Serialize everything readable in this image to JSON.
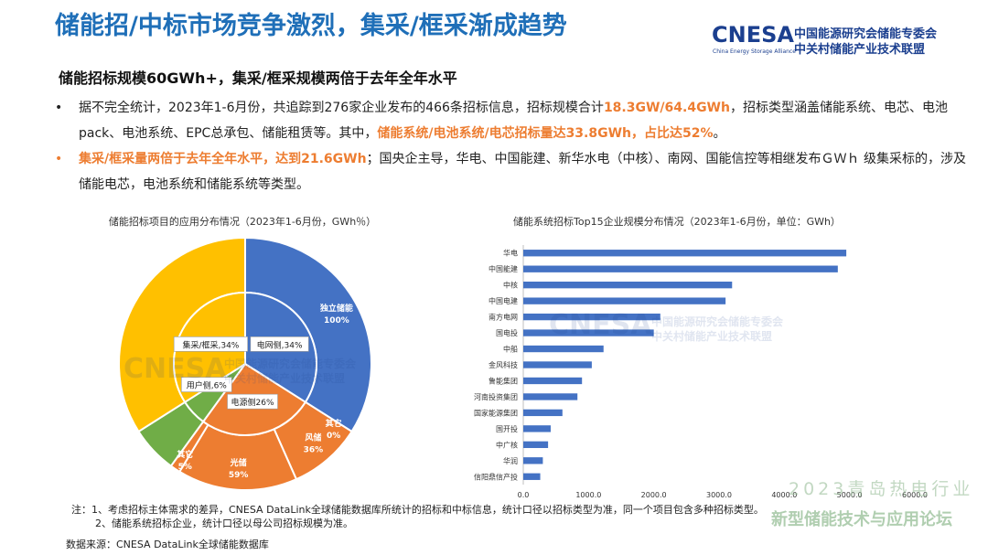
{
  "header": {
    "title": "储能招/中标市场竞争激烈，集采/框采渐成趋势",
    "logo_mark": "CNESA",
    "logo_sub": "China Energy Storage Alliance",
    "logo_cn_line1": "中国能源研究会储能专委会",
    "logo_cn_line2": "中关村储能产业技术联盟"
  },
  "subtitle": "储能招标规模60GWh+，集采/框采规模两倍于去年全年水平",
  "bullets": [
    {
      "marker": "•",
      "t1": "据不完全统计，2023年1-6月份，共追踪到276家企业发布的466条招标信息，招标规模合计",
      "h1": "18.3GW/64.4GWh",
      "t2": "，招标类型涵盖储能系统、电芯、电池pack、电池系统、EPC总承包、储能租赁等。其中，",
      "h2": "储能系统/电池系统/电芯招标量达33.8GWh，占比达52%",
      "t3": "。"
    },
    {
      "marker": "•",
      "h1": "集采/框采量两倍于去年全年水平，达到21.6GWh",
      "t1": "；国央企主导，华电、中国能建、新华水电（中核）、南网、国能信控等相继发布ＧＷｈ 级集采标的，涉及储能电芯，电池系统和储能系统等类型。"
    }
  ],
  "chart_data": [
    {
      "type": "pie",
      "title": "储能招标项目的应用分布情况（2023年1-6月份，GWh％）",
      "inner": [
        {
          "label": "电网侧",
          "value": 34,
          "color": "#4472c4"
        },
        {
          "label": "电源侧",
          "value": 26,
          "color": "#ed7d31"
        },
        {
          "label": "用户侧",
          "value": 6,
          "color": "#70ad47"
        },
        {
          "label": "集采/框采",
          "value": 34,
          "color": "#ffc000"
        }
      ],
      "inner_labels": [
        "电网侧,34%",
        "电源侧26%",
        "用户侧,6%",
        "集采/框采,34%"
      ],
      "outer": [
        {
          "parent": "电网侧",
          "name": "独立储能",
          "pct": "100%"
        },
        {
          "parent": "电网侧",
          "name": "其它",
          "pct": "0%"
        },
        {
          "parent": "电源侧",
          "name": "风储",
          "pct": "36%"
        },
        {
          "parent": "电源侧",
          "name": "光储",
          "pct": "59%"
        },
        {
          "parent": "电源侧",
          "name": "其它",
          "pct": "5%"
        }
      ]
    },
    {
      "type": "bar",
      "orientation": "horizontal",
      "title": "储能系统招标Top15企业规模分布情况（2023年1-6月份，单位：GWh）",
      "categories": [
        "华电",
        "中国能建",
        "中核",
        "中国电建",
        "南方电网",
        "国电投",
        "中船",
        "金风科技",
        "鲁能集团",
        "河南投资集团",
        "国家能源集团",
        "国开投",
        "中广核",
        "华润",
        "信阳鼎信产投"
      ],
      "values": [
        4950,
        4820,
        3200,
        3100,
        2100,
        2000,
        1230,
        1050,
        900,
        830,
        600,
        420,
        380,
        300,
        260
      ],
      "xlim": [
        0,
        6000
      ],
      "xticks": [
        "0.0",
        "1000.0",
        "2000.0",
        "3000.0",
        "4000.0",
        "5000.0",
        "6000.0"
      ],
      "bar_color": "#4472c4"
    }
  ],
  "notes": {
    "line1": "注：1、考虑招标主体需求的差异，CNESA DataLink全球储能数据库所统计的招标和中标信息，统计口径以招标类型为准，同一个项目包含多种招标类型。",
    "line2": "2、储能系统招标企业，统计口径以母公司招标规模为准。"
  },
  "source": "数据来源：CNESA DataLink全球储能数据库",
  "forum": {
    "line1": "2023青岛热电行业",
    "line2": "新型储能技术与应用论坛"
  }
}
